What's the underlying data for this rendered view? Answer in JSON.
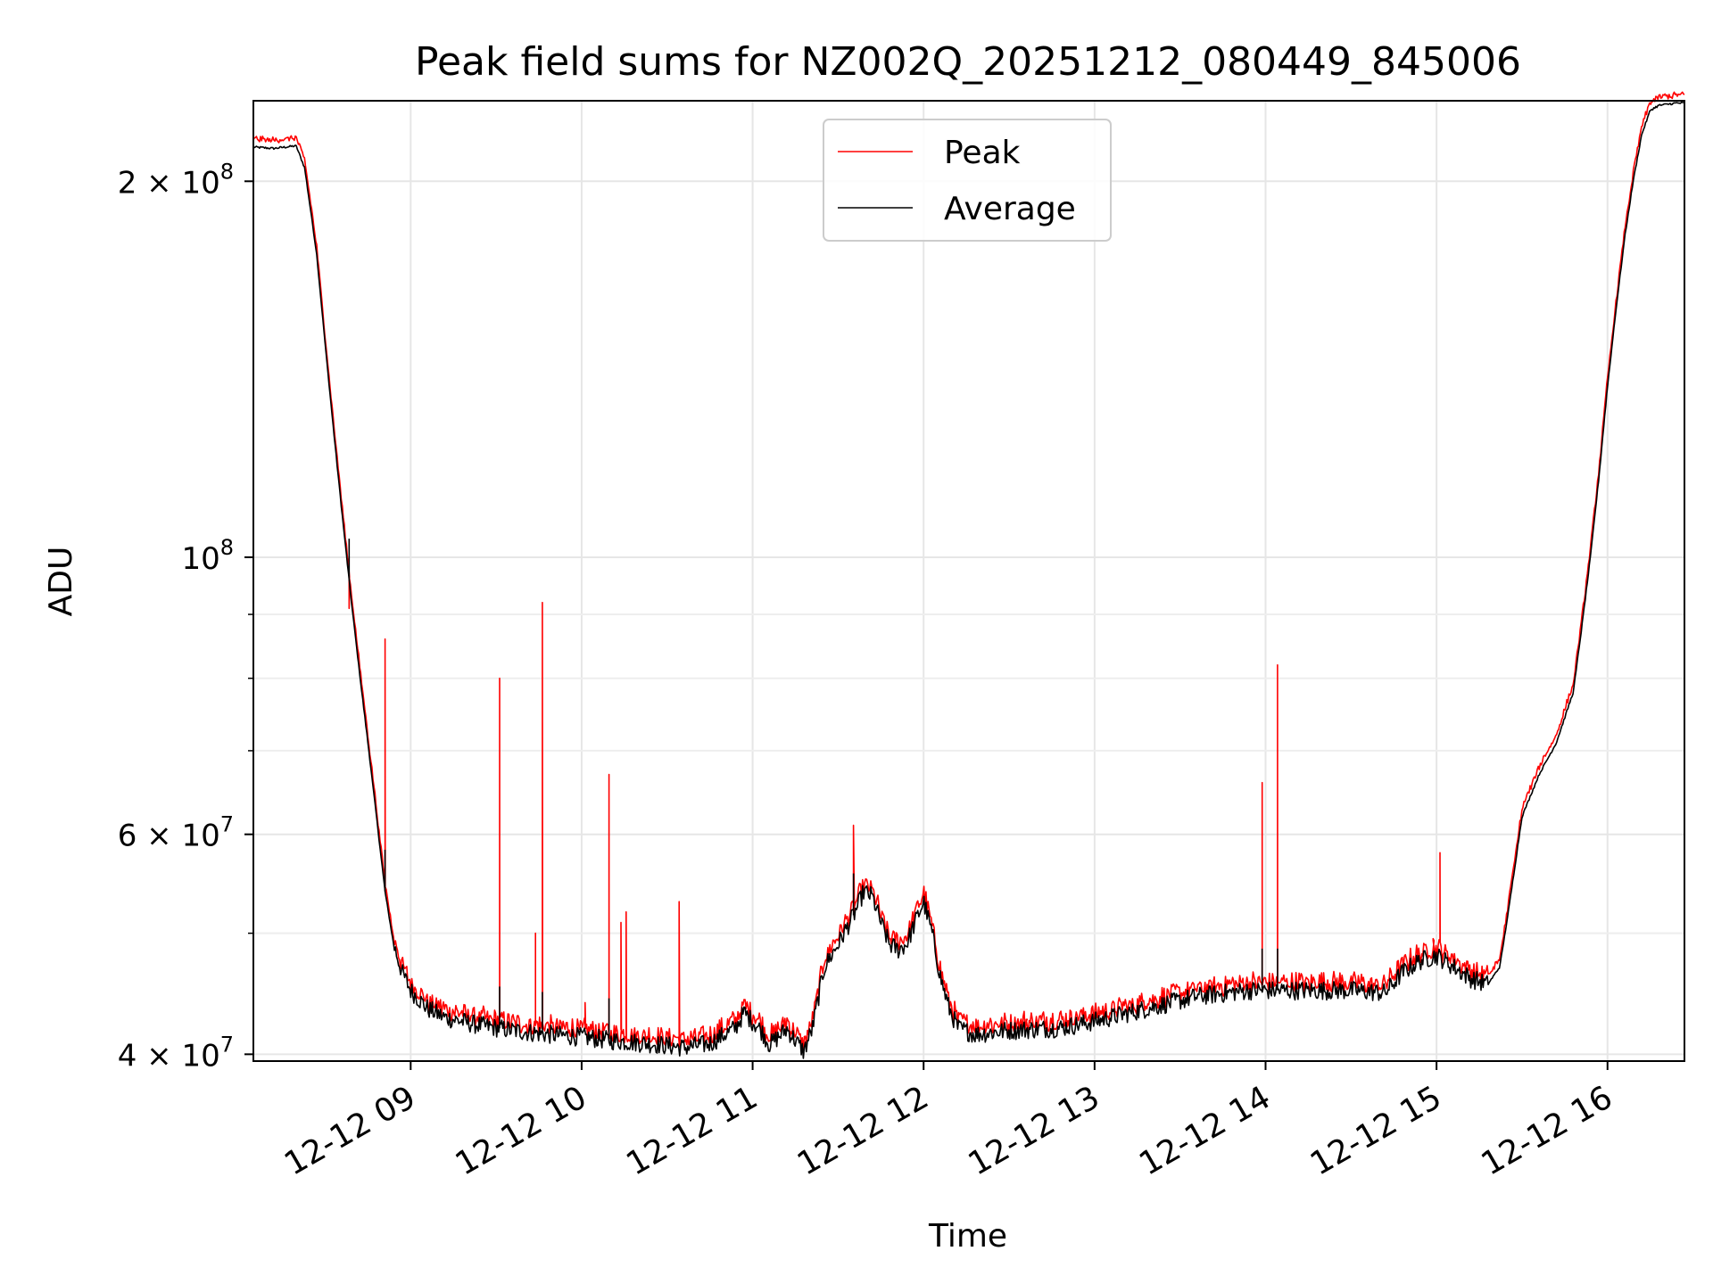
{
  "chart_data": {
    "type": "line",
    "title": "Peak field sums for NZ002Q_20251212_080449_845006",
    "xlabel": "Time",
    "ylabel": "ADU",
    "yscale": "log",
    "xlim": [
      8.08,
      16.45
    ],
    "ylim": [
      39500000,
      232000000
    ],
    "x_ticks": [
      {
        "value": 9,
        "label": "12-12 09"
      },
      {
        "value": 10,
        "label": "12-12 10"
      },
      {
        "value": 11,
        "label": "12-12 11"
      },
      {
        "value": 12,
        "label": "12-12 12"
      },
      {
        "value": 13,
        "label": "12-12 13"
      },
      {
        "value": 14,
        "label": "12-12 14"
      },
      {
        "value": 15,
        "label": "12-12 15"
      },
      {
        "value": 16,
        "label": "12-12 16"
      }
    ],
    "y_major_ticks": [
      {
        "value": 40000000,
        "base": "4 × 10",
        "exp": "7"
      },
      {
        "value": 60000000,
        "base": "6 × 10",
        "exp": "7"
      },
      {
        "value": 100000000,
        "base": "10",
        "exp": "8"
      },
      {
        "value": 200000000,
        "base": "2 × 10",
        "exp": "8"
      }
    ],
    "y_minor_ticks": [
      50000000,
      70000000,
      80000000,
      90000000
    ],
    "grid": true,
    "legend": {
      "position": "upper-center",
      "entries": [
        {
          "name": "Peak",
          "color": "#ff0000"
        },
        {
          "name": "Average",
          "color": "#000000"
        }
      ]
    },
    "series": [
      {
        "name": "Average",
        "color": "#000000",
        "x": [
          8.08,
          8.2,
          8.33,
          8.38,
          8.45,
          8.5,
          8.55,
          8.6,
          8.65,
          8.7,
          8.75,
          8.8,
          8.85,
          8.9,
          8.95,
          9.0,
          9.1,
          9.2,
          9.4,
          9.6,
          9.8,
          10.0,
          10.2,
          10.4,
          10.6,
          10.75,
          10.9,
          10.95,
          11.05,
          11.1,
          11.2,
          11.3,
          11.35,
          11.42,
          11.5,
          11.6,
          11.65,
          11.7,
          11.75,
          11.8,
          11.85,
          11.9,
          11.95,
          12.0,
          12.05,
          12.1,
          12.15,
          12.2,
          12.3,
          12.5,
          12.8,
          13.0,
          13.3,
          13.6,
          13.9,
          14.2,
          14.5,
          14.7,
          14.8,
          14.9,
          15.0,
          15.1,
          15.2,
          15.3,
          15.37,
          15.42,
          15.5,
          15.6,
          15.7,
          15.8,
          15.85,
          15.9,
          15.95,
          16.0,
          16.05,
          16.1,
          16.15,
          16.2,
          16.25,
          16.3,
          16.4,
          16.45
        ],
        "values": [
          213000000,
          212500000,
          213500000,
          205000000,
          175000000,
          148000000,
          126000000,
          108000000,
          93000000,
          81000000,
          71000000,
          62000000,
          54000000,
          49000000,
          46500000,
          45000000,
          43500000,
          42800000,
          42200000,
          41800000,
          41500000,
          41300000,
          41000000,
          40800000,
          40500000,
          40800000,
          42000000,
          43200000,
          41800000,
          40700000,
          41900000,
          40200000,
          42000000,
          47000000,
          49000000,
          52000000,
          54000000,
          53500000,
          51000000,
          49000000,
          48500000,
          49000000,
          51000000,
          53000000,
          50000000,
          46000000,
          43500000,
          42000000,
          41500000,
          41800000,
          42000000,
          42500000,
          43500000,
          44500000,
          45000000,
          45000000,
          45000000,
          44800000,
          46500000,
          47500000,
          48000000,
          47000000,
          46000000,
          45500000,
          47000000,
          52000000,
          62000000,
          67000000,
          71000000,
          78000000,
          88000000,
          100000000,
          116000000,
          137000000,
          158000000,
          180000000,
          200000000,
          218000000,
          228000000,
          230000000,
          231000000,
          231000000
        ]
      },
      {
        "name": "Peak",
        "color": "#ff0000",
        "offset_ratio": 1.015,
        "spikes": [
          {
            "x": 8.64,
            "value": 91000000
          },
          {
            "x": 8.85,
            "value": 86000000
          },
          {
            "x": 9.52,
            "value": 80000000
          },
          {
            "x": 9.73,
            "value": 50000000
          },
          {
            "x": 9.77,
            "value": 92000000
          },
          {
            "x": 10.02,
            "value": 44000000
          },
          {
            "x": 10.16,
            "value": 67000000
          },
          {
            "x": 10.23,
            "value": 51000000
          },
          {
            "x": 10.26,
            "value": 52000000
          },
          {
            "x": 10.57,
            "value": 53000000
          },
          {
            "x": 11.59,
            "value": 61000000
          },
          {
            "x": 12.6,
            "value": 42500000
          },
          {
            "x": 13.98,
            "value": 66000000
          },
          {
            "x": 14.07,
            "value": 82000000
          },
          {
            "x": 14.98,
            "value": 49500000
          },
          {
            "x": 15.02,
            "value": 58000000
          }
        ]
      }
    ]
  }
}
